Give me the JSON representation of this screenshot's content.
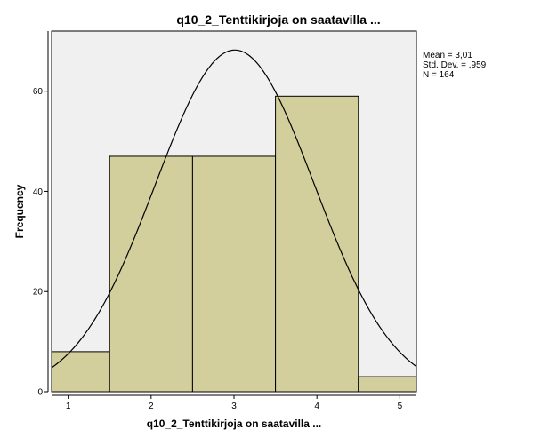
{
  "chart_data": {
    "type": "bar",
    "subtype": "histogram",
    "title": "q10_2_Tenttikirjoja on saatavilla ...",
    "xlabel": "q10_2_Tenttikirjoja on saatavilla ...",
    "ylabel": "Frequency",
    "bins": [
      {
        "from": 0.5,
        "to": 1.5,
        "value": 8
      },
      {
        "from": 1.5,
        "to": 2.5,
        "value": 47
      },
      {
        "from": 2.5,
        "to": 3.5,
        "value": 47
      },
      {
        "from": 3.5,
        "to": 4.5,
        "value": 59
      },
      {
        "from": 4.5,
        "to": 5.5,
        "value": 3
      }
    ],
    "xlim": [
      0.8,
      5.2
    ],
    "ylim": [
      0,
      72
    ],
    "x_ticks": [
      1,
      2,
      3,
      4,
      5
    ],
    "y_ticks": [
      0,
      20,
      40,
      60
    ],
    "normal_curve": {
      "mean": 3.01,
      "std": 0.959,
      "n": 164
    },
    "stats": {
      "mean_label": "Mean = 3,01",
      "std_label": "Std. Dev. = ,959",
      "n_label": "N = 164"
    },
    "colors": {
      "bar_fill": "#d3cf9c",
      "bar_stroke": "#000000",
      "plot_background": "#f0f0f0",
      "curve": "#000000"
    }
  }
}
